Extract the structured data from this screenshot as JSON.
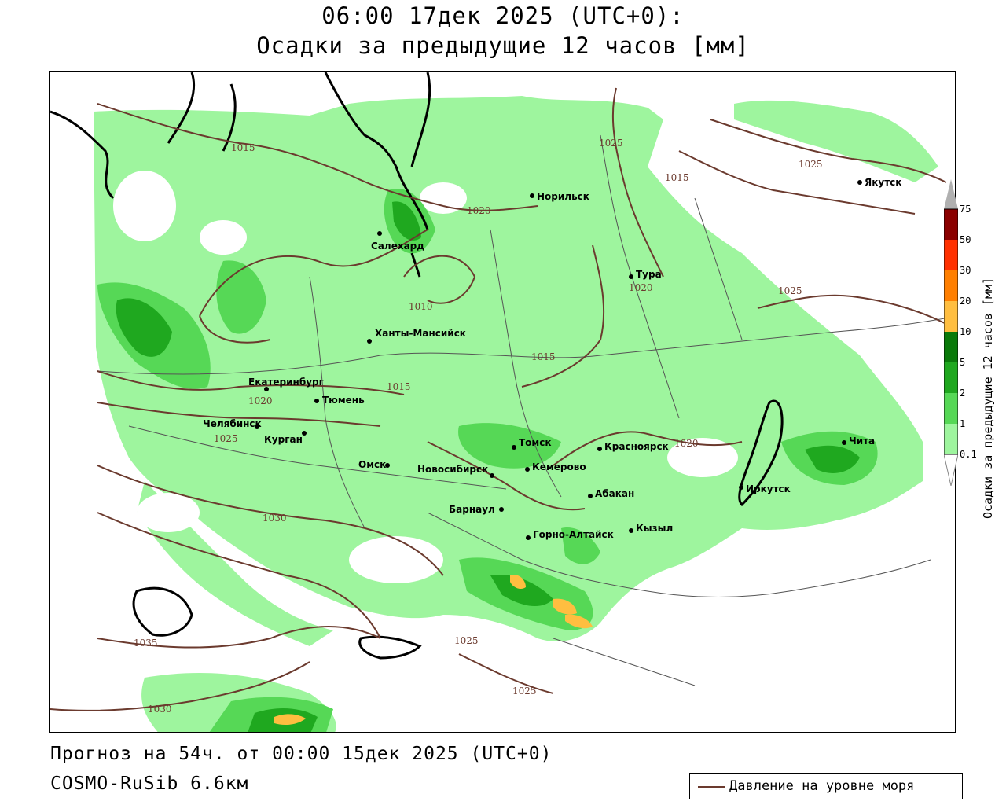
{
  "title": {
    "line1": "06:00 17дек 2025 (UTC+0):",
    "line2": "Осадки за предыдущие 12 часов [мм]"
  },
  "footer": {
    "forecast": "Прогноз на 54ч. от 00:00 15дек 2025 (UTC+0)",
    "model": "COSMO-RuSib 6.6км"
  },
  "legend": {
    "isobar_label": "Давление на уровне моря"
  },
  "colorbar": {
    "title": "Осадки за предыдущие 12 часов [мм]",
    "levels": [
      "0.1",
      "1",
      "2",
      "5",
      "10",
      "20",
      "30",
      "50",
      "75"
    ],
    "colors": [
      "#ffffff",
      "#9ef59e",
      "#56d856",
      "#1fa81f",
      "#0a7a0a",
      "#ffbe40",
      "#ff7f00",
      "#ff3000",
      "#c00000",
      "#8b0000",
      "#b0b0b0"
    ]
  },
  "cities": [
    {
      "name": "Якутск"
    },
    {
      "name": "Норильск"
    },
    {
      "name": "Салехард"
    },
    {
      "name": "Тура"
    },
    {
      "name": "Ханты-Мансийск"
    },
    {
      "name": "Екатеринбург"
    },
    {
      "name": "Тюмень"
    },
    {
      "name": "Челябинск"
    },
    {
      "name": "Курган"
    },
    {
      "name": "Омск"
    },
    {
      "name": "Новосибирск"
    },
    {
      "name": "Томск"
    },
    {
      "name": "Кемерово"
    },
    {
      "name": "Красноярск"
    },
    {
      "name": "Абакан"
    },
    {
      "name": "Барнаул"
    },
    {
      "name": "Горно-Алтайск"
    },
    {
      "name": "Кызыл"
    },
    {
      "name": "Иркутск"
    },
    {
      "name": "Чита"
    }
  ],
  "isobars": [
    "1015",
    "1020",
    "1025",
    "1015",
    "1010",
    "1015",
    "1020",
    "1025",
    "1020",
    "1025",
    "1030",
    "1035",
    "1030",
    "1025",
    "1025",
    "1020",
    "1015",
    "1025"
  ]
}
